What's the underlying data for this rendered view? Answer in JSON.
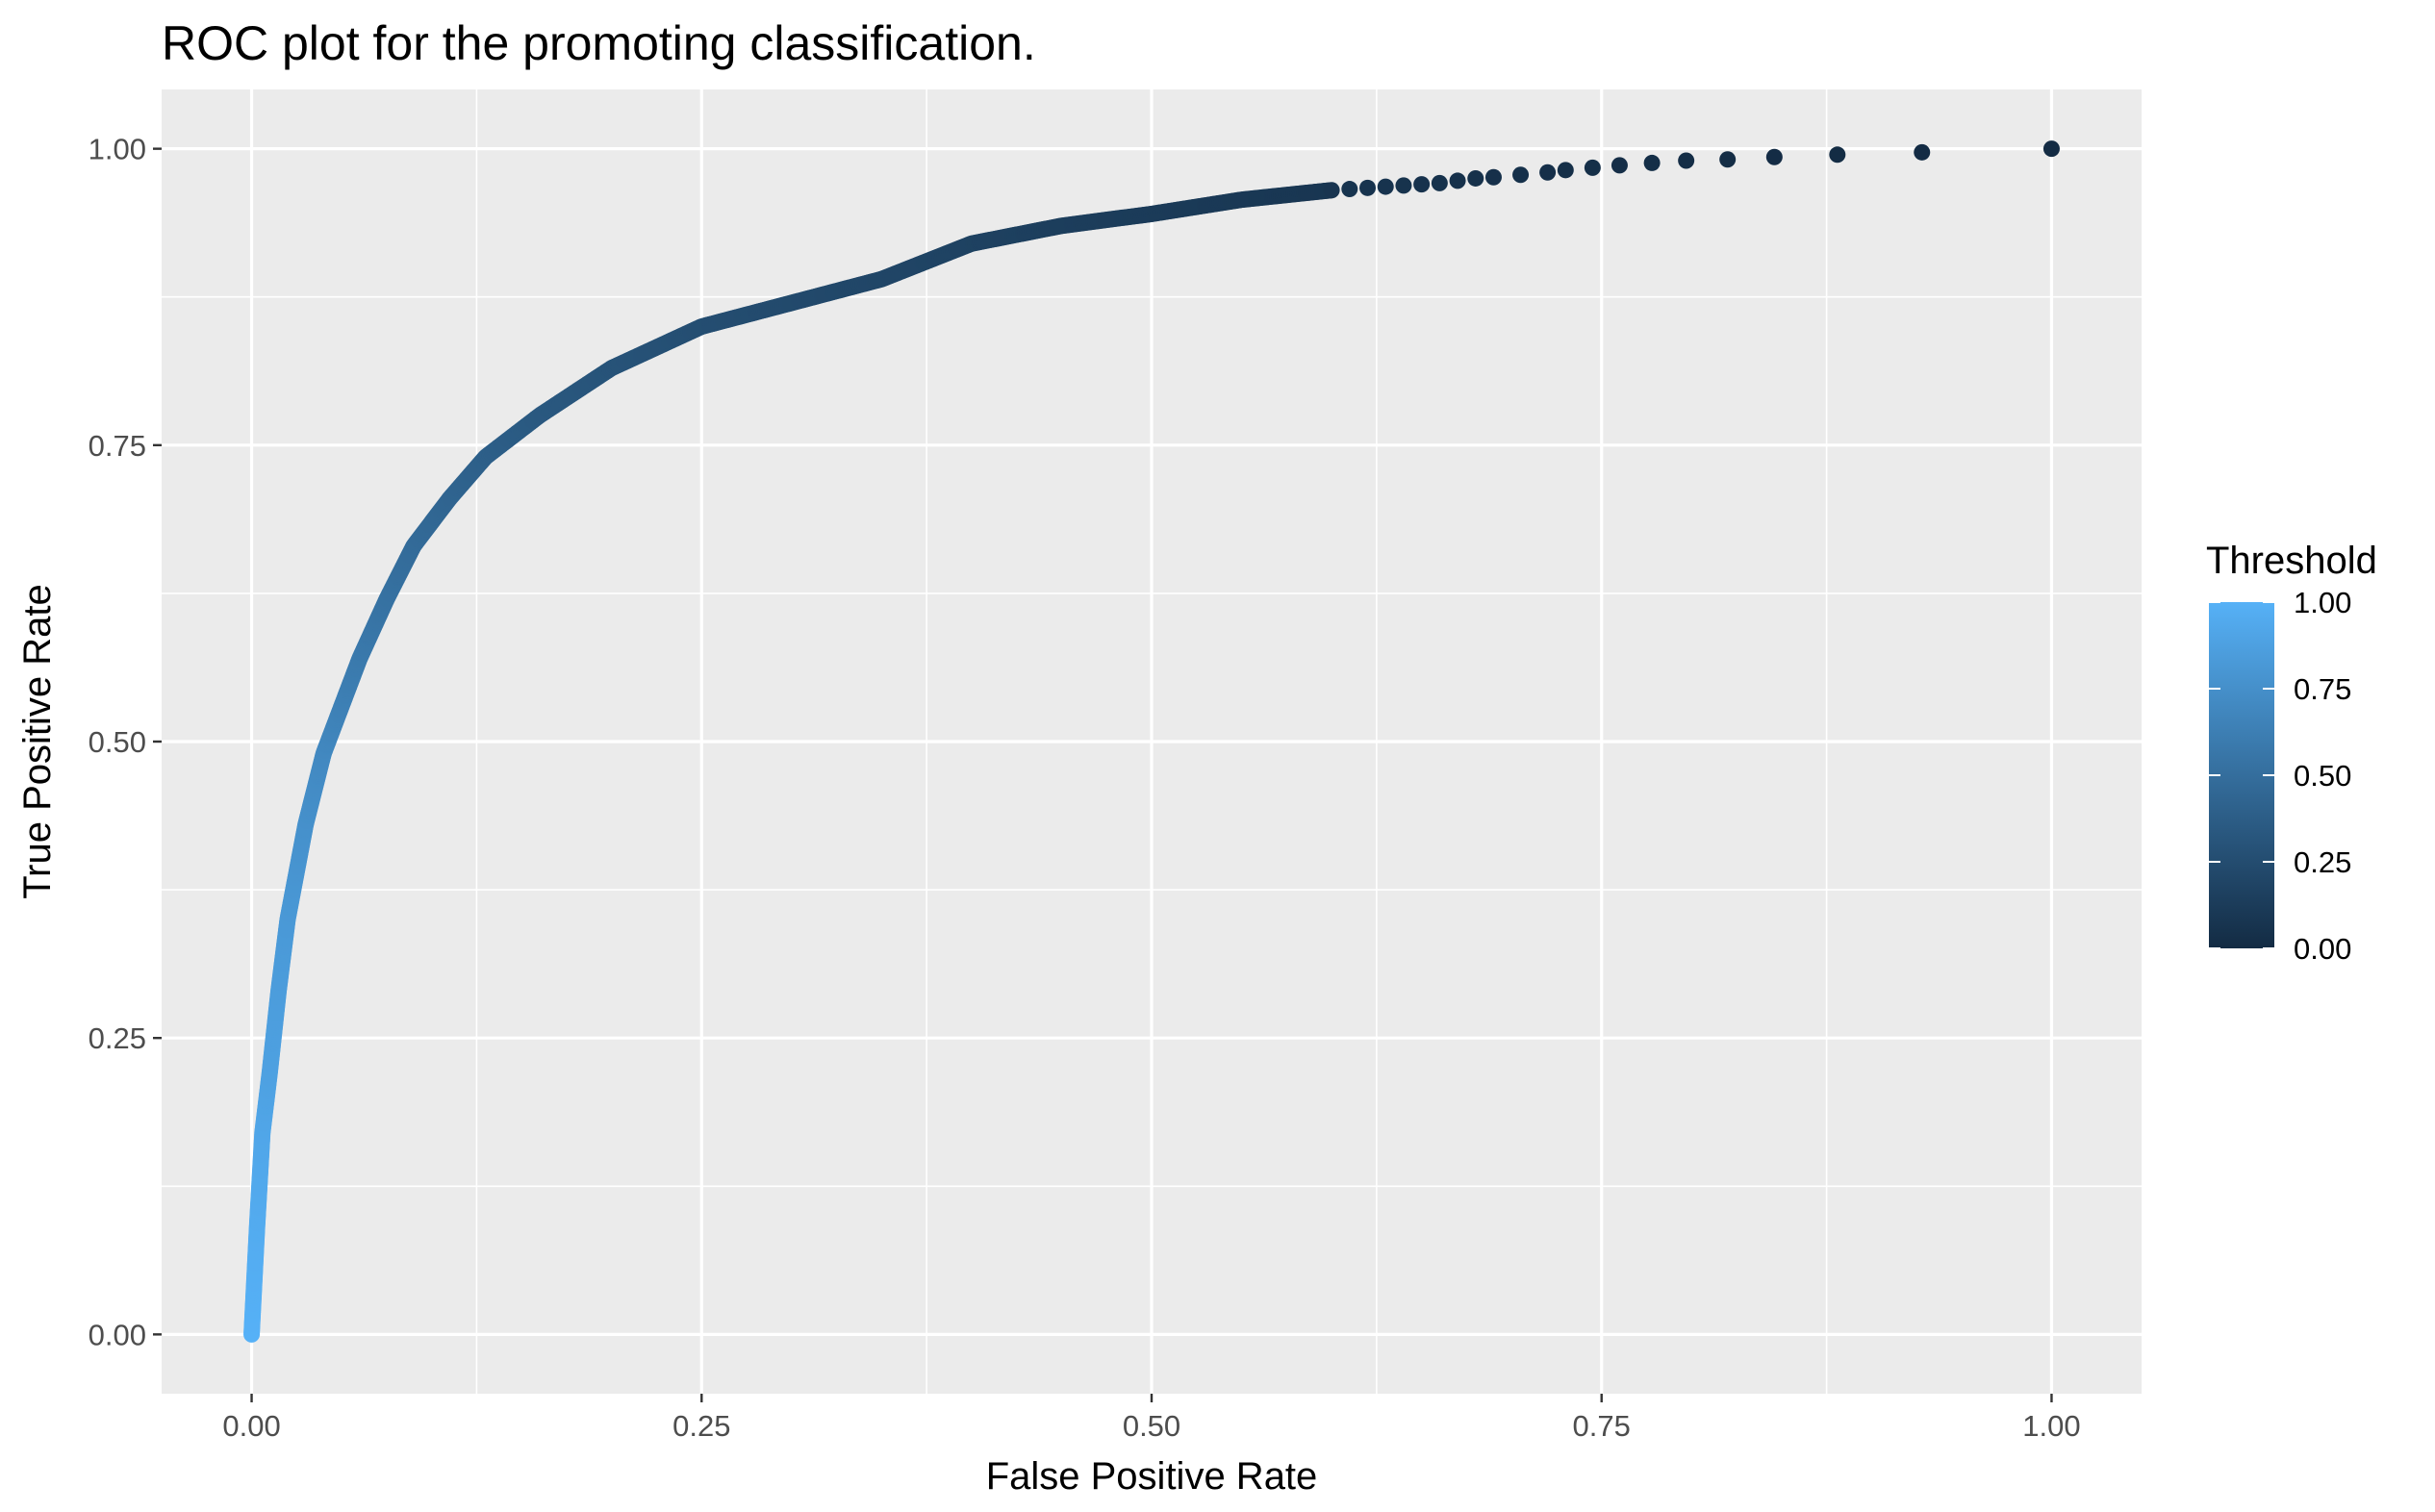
{
  "chart_data": {
    "type": "scatter",
    "title": "ROC plot for the promoting classification.",
    "xlabel": "False Positive Rate",
    "ylabel": "True Positive Rate",
    "xlim": [
      -0.05,
      1.05
    ],
    "ylim": [
      -0.05,
      1.05
    ],
    "x_ticks": [
      0.0,
      0.25,
      0.5,
      0.75,
      1.0
    ],
    "x_tick_labels": [
      "0.00",
      "0.25",
      "0.50",
      "0.75",
      "1.00"
    ],
    "y_ticks": [
      0.0,
      0.25,
      0.5,
      0.75,
      1.0
    ],
    "y_tick_labels": [
      "0.00",
      "0.25",
      "0.50",
      "0.75",
      "1.00"
    ],
    "grid": true,
    "legend": {
      "title": "Threshold",
      "placement": "right",
      "type": "colorbar",
      "range": [
        0.0,
        1.0
      ],
      "ticks": [
        1.0,
        0.75,
        0.5,
        0.25,
        0.0
      ],
      "tick_labels": [
        "1.00",
        "0.75",
        "0.50",
        "0.25",
        "0.00"
      ],
      "color_low": "#132B43",
      "color_high": "#56B1F7"
    },
    "colors": {
      "panel_background": "#EBEBEB",
      "grid": "#FFFFFF",
      "tick_text": "#4D4D4D"
    },
    "curve_anchors": {
      "x": [
        0.0,
        0.003,
        0.006,
        0.01,
        0.015,
        0.02,
        0.025,
        0.03,
        0.04,
        0.05,
        0.06,
        0.075,
        0.09,
        0.11,
        0.13,
        0.16,
        0.2,
        0.25,
        0.3,
        0.35,
        0.4,
        0.45,
        0.5,
        0.55,
        0.6,
        0.65,
        0.7,
        0.75,
        0.8,
        0.85,
        0.88,
        0.93,
        1.0
      ],
      "y": [
        0.0,
        0.09,
        0.17,
        0.22,
        0.29,
        0.35,
        0.39,
        0.43,
        0.49,
        0.53,
        0.57,
        0.62,
        0.665,
        0.705,
        0.74,
        0.775,
        0.815,
        0.85,
        0.87,
        0.89,
        0.92,
        0.935,
        0.945,
        0.957,
        0.965,
        0.972,
        0.978,
        0.984,
        0.99,
        0.993,
        0.995,
        0.997,
        1.0
      ],
      "threshold": [
        1.0,
        0.96,
        0.92,
        0.88,
        0.85,
        0.82,
        0.79,
        0.76,
        0.7,
        0.64,
        0.59,
        0.53,
        0.48,
        0.43,
        0.39,
        0.34,
        0.3,
        0.26,
        0.23,
        0.2,
        0.17,
        0.14,
        0.12,
        0.1,
        0.08,
        0.06,
        0.05,
        0.04,
        0.03,
        0.02,
        0.015,
        0.01,
        0.0
      ]
    },
    "sparse_points": {
      "x": [
        0.6,
        0.61,
        0.62,
        0.63,
        0.64,
        0.65,
        0.66,
        0.67,
        0.68,
        0.69,
        0.705,
        0.72,
        0.73,
        0.745,
        0.76,
        0.778,
        0.797,
        0.82,
        0.846,
        0.881,
        0.928,
        1.0
      ],
      "y": [
        0.965,
        0.966,
        0.967,
        0.968,
        0.969,
        0.97,
        0.971,
        0.973,
        0.975,
        0.976,
        0.978,
        0.98,
        0.982,
        0.984,
        0.986,
        0.988,
        0.99,
        0.991,
        0.993,
        0.995,
        0.997,
        1.0
      ]
    }
  }
}
